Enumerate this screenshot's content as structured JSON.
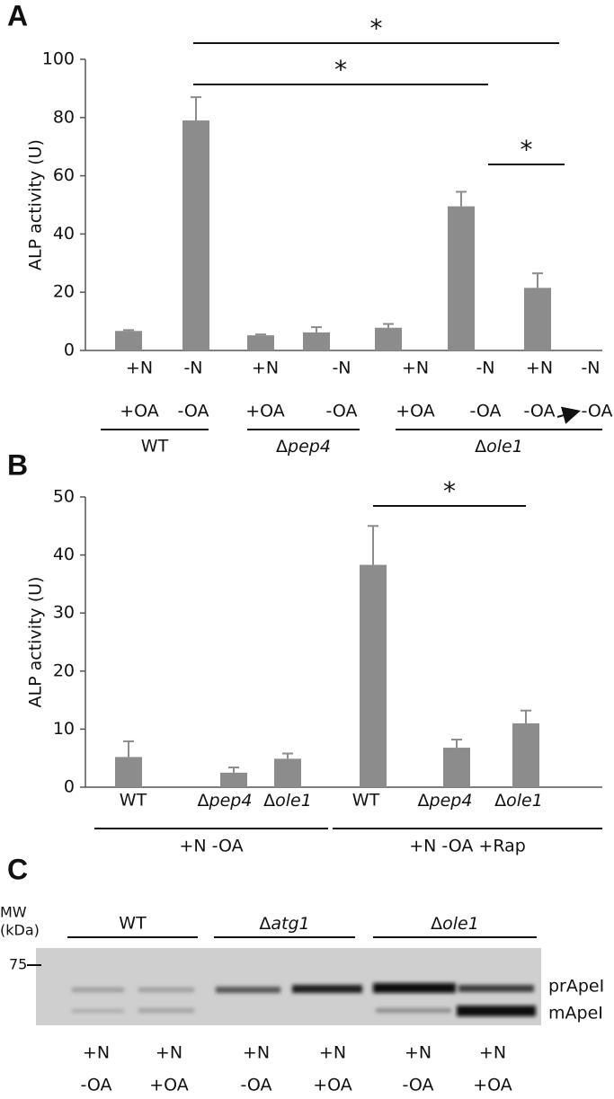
{
  "chart_data": [
    {
      "type": "bar",
      "panel": "A",
      "y_label": "ALP activity (U)",
      "color": "#8c8c8c",
      "ylim": [
        0,
        100
      ],
      "yticks": [
        0,
        20,
        40,
        60,
        80,
        100
      ],
      "categories": [
        [
          "+N",
          "+OA"
        ],
        [
          "-N",
          "-OA"
        ],
        [
          "+N",
          "+OA"
        ],
        [
          "-N",
          "-OA"
        ],
        [
          "+N",
          "+OA"
        ],
        [
          "-N",
          "-OA"
        ],
        [
          "+N",
          "-OA"
        ]
      ],
      "shifted_to": [
        "-N",
        "-OA"
      ],
      "values": [
        6.7,
        79,
        5.2,
        6.2,
        7.8,
        49.5,
        21.5
      ],
      "errors": [
        0.3,
        8,
        0.3,
        1.8,
        1.3,
        5,
        5
      ],
      "groups": [
        "WT",
        "Δpep4",
        "Δole1"
      ],
      "significance": [
        "*",
        "*",
        "*"
      ]
    },
    {
      "type": "bar",
      "panel": "B",
      "y_label": "ALP activity (U)",
      "color": "#8c8c8c",
      "ylim": [
        0,
        50
      ],
      "yticks": [
        0,
        10,
        20,
        30,
        40,
        50
      ],
      "categories": [
        "WT",
        "Δpep4",
        "Δole1",
        "WT",
        "Δpep4",
        "Δole1"
      ],
      "values": [
        5.2,
        2.5,
        4.9,
        38.3,
        6.8,
        11
      ],
      "errors": [
        2.7,
        0.9,
        0.9,
        6.7,
        1.4,
        2.2
      ],
      "groups": [
        "+N -OA",
        "+N -OA +Rap"
      ],
      "significance": [
        "*"
      ]
    }
  ],
  "panel_c": {
    "panel": "C",
    "mw_label": [
      "MW",
      "(kDa)"
    ],
    "mw_marker": "75",
    "groups": [
      "WT",
      "Δatg1",
      "Δole1"
    ],
    "band_labels": [
      "prApeI",
      "mApeI"
    ],
    "lanes": [
      [
        "+N",
        "-OA"
      ],
      [
        "+N",
        "+OA"
      ],
      [
        "+N",
        "-OA"
      ],
      [
        "+N",
        "+OA"
      ],
      [
        "+N",
        "-OA"
      ],
      [
        "+N",
        "+OA"
      ]
    ]
  }
}
